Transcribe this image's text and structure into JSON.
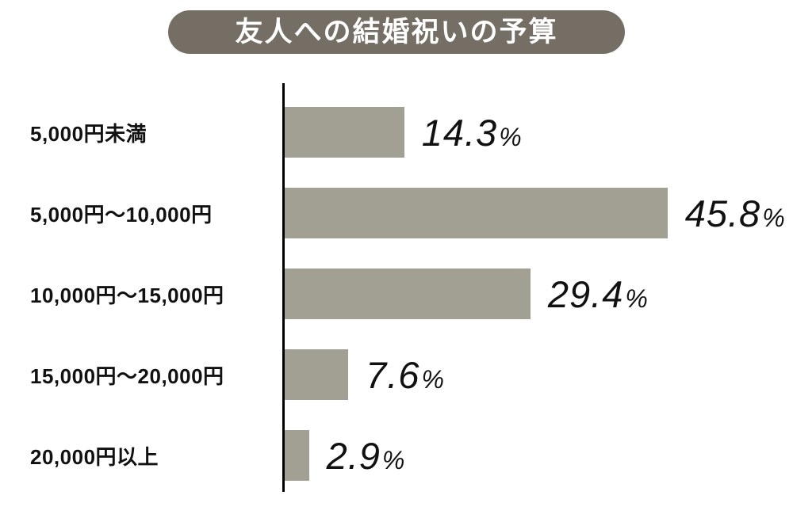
{
  "title": "友人への結婚祝いの予算",
  "colors": {
    "title_bg": "#746e65",
    "title_text": "#ffffff",
    "bar": "#a2a093",
    "axis": "#000000",
    "text": "#111111",
    "background": "#ffffff"
  },
  "chart_data": {
    "type": "bar",
    "orientation": "horizontal",
    "title": "友人への結婚祝いの予算",
    "categories": [
      "5,000円未満",
      "5,000円〜10,000円",
      "10,000円〜15,000円",
      "15,000円〜20,000円",
      "20,000円以上"
    ],
    "values": [
      14.3,
      45.8,
      29.4,
      7.6,
      2.9
    ],
    "value_labels": [
      "14.3%",
      "45.8%",
      "29.4%",
      "7.6%",
      "2.9%"
    ],
    "unit": "%",
    "xlabel": "",
    "ylabel": "",
    "xlim": [
      0,
      50
    ],
    "grid": false,
    "legend": false
  }
}
